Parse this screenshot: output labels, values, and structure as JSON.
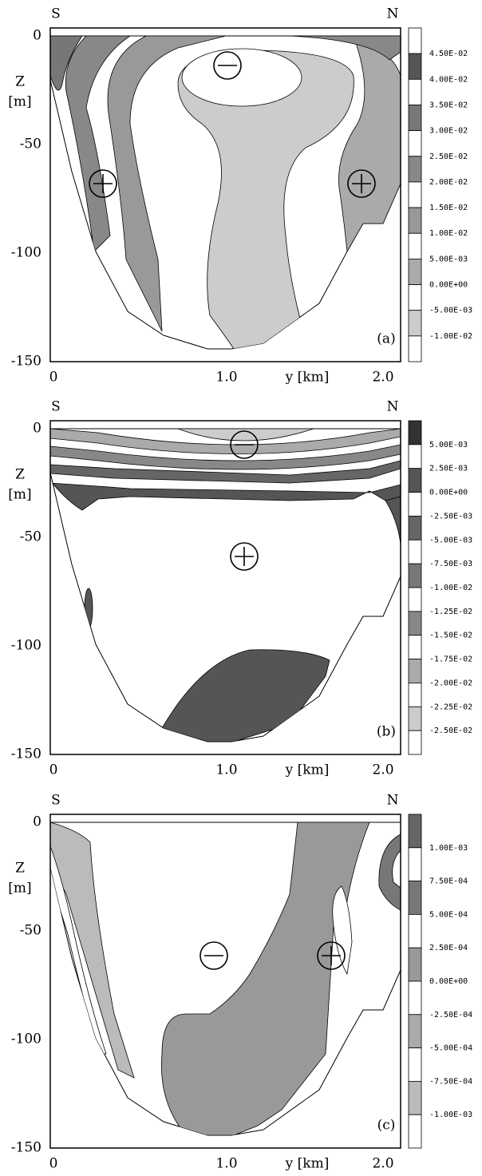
{
  "panels": [
    {
      "label": "(a)",
      "south": "S",
      "north": "N",
      "z_label": "Z",
      "z_unit": "[m]",
      "y_label": "y [km]",
      "z_ticks": [
        "0",
        "-50",
        "-100",
        "-150"
      ],
      "y_ticks": [
        "0",
        "1.0",
        "2.0"
      ],
      "colorbar": [
        "4.50E-02",
        "4.00E-02",
        "3.50E-02",
        "3.00E-02",
        "2.50E-02",
        "2.00E-02",
        "1.50E-02",
        "1.00E-02",
        "5.00E-03",
        "0.00E+00",
        "-5.00E-03",
        "-1.00E-02"
      ],
      "colors": [
        "#fff",
        "#555",
        "#fff",
        "#777",
        "#fff",
        "#888",
        "#fff",
        "#999",
        "#fff",
        "#aaa",
        "#fff",
        "#ccc",
        "#fff"
      ]
    },
    {
      "label": "(b)",
      "south": "S",
      "north": "N",
      "z_label": "Z",
      "z_unit": "[m]",
      "y_label": "y [km]",
      "z_ticks": [
        "0",
        "-50",
        "-100",
        "-150"
      ],
      "y_ticks": [
        "0",
        "1.0",
        "2.0"
      ],
      "colorbar": [
        "5.00E-03",
        "2.50E-03",
        "0.00E+00",
        "-2.50E-03",
        "-5.00E-03",
        "-7.50E-03",
        "-1.00E-02",
        "-1.25E-02",
        "-1.50E-02",
        "-1.75E-02",
        "-2.00E-02",
        "-2.25E-02",
        "-2.50E-02"
      ],
      "colors": [
        "#333",
        "#fff",
        "#555",
        "#fff",
        "#666",
        "#fff",
        "#777",
        "#fff",
        "#888",
        "#fff",
        "#aaa",
        "#fff",
        "#ccc",
        "#fff"
      ]
    },
    {
      "label": "(c)",
      "south": "S",
      "north": "N",
      "z_label": "Z",
      "z_unit": "[m]",
      "y_label": "y [km]",
      "z_ticks": [
        "0",
        "-50",
        "-100",
        "-150"
      ],
      "y_ticks": [
        "0",
        "1.0",
        "2.0"
      ],
      "colorbar": [
        "1.00E-03",
        "7.50E-04",
        "5.00E-04",
        "2.50E-04",
        "0.00E+00",
        "-2.50E-04",
        "-5.00E-04",
        "-7.50E-04",
        "-1.00E-03"
      ],
      "colors": [
        "#666",
        "#fff",
        "#777",
        "#fff",
        "#999",
        "#fff",
        "#aaa",
        "#fff",
        "#bbb",
        "#fff"
      ]
    }
  ]
}
